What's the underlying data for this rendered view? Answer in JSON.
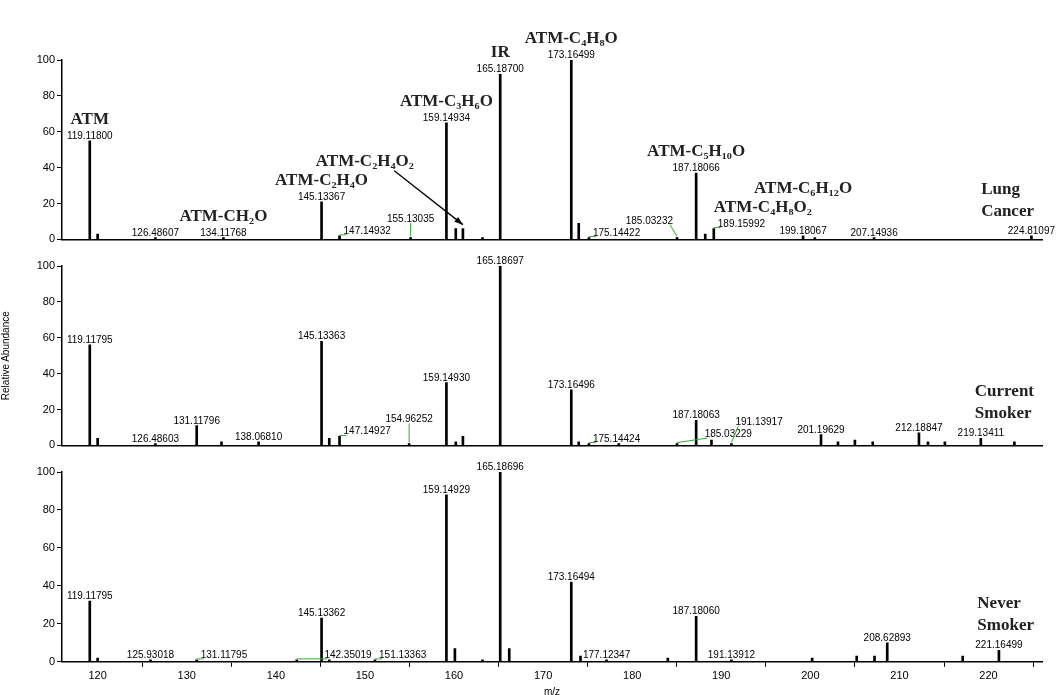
{
  "chart_data": [
    {
      "type": "bar",
      "xlim": [
        116,
        226
      ],
      "ylim": [
        0,
        100
      ],
      "yticks": [
        0,
        20,
        40,
        60,
        80,
        100
      ],
      "tick_labels": "y",
      "color": "#000000",
      "x": [
        119.118,
        120.0,
        126.48607,
        134.11768,
        145.13367,
        147.14932,
        155.13035,
        159.14934,
        160.2,
        161.0,
        163.2,
        165.187,
        173.16499,
        174.0,
        175.14422,
        185.03232,
        187.18066,
        188.2,
        189.15992,
        199.18067,
        200.5,
        207.14936,
        224.81097
      ],
      "values": [
        55,
        3,
        1,
        1,
        21,
        2,
        1,
        65,
        6,
        6,
        1,
        92,
        100,
        9,
        1,
        1,
        37,
        3,
        6,
        2,
        1,
        1,
        2
      ],
      "annotations": [
        {
          "text": "119.11800",
          "x": 119.118,
          "y": 55
        },
        {
          "text": "126.48607",
          "x": 126.48607,
          "y": 1
        },
        {
          "text": "134.11768",
          "x": 134.11768,
          "y": 1
        },
        {
          "text": "145.13367",
          "x": 145.13367,
          "y": 21
        },
        {
          "text": "147.14932",
          "x": 147.14932,
          "y": 2
        },
        {
          "text": "155.13035",
          "x": 155.13035,
          "y": 1
        },
        {
          "text": "159.14934",
          "x": 159.14934,
          "y": 65
        },
        {
          "text": "165.18700",
          "x": 165.187,
          "y": 92
        },
        {
          "text": "173.16499",
          "x": 173.16499,
          "y": 100
        },
        {
          "text": "175.14422",
          "x": 175.14422,
          "y": 1
        },
        {
          "text": "185.03232",
          "x": 185.03232,
          "y": 1
        },
        {
          "text": "187.18066",
          "x": 187.18066,
          "y": 37
        },
        {
          "text": "189.15992",
          "x": 189.15992,
          "y": 6
        },
        {
          "text": "199.18067",
          "x": 199.18067,
          "y": 2
        },
        {
          "text": "207.14936",
          "x": 207.14936,
          "y": 1
        },
        {
          "text": "224.81097",
          "x": 224.81097,
          "y": 2
        },
        {
          "text": "ATM",
          "x": 119.118,
          "y": 55
        },
        {
          "text": "ATM-CH₂O",
          "x": 134.11768,
          "y": 1
        },
        {
          "text": "ATM-C₂H₄O",
          "x": 145.13367,
          "y": 21
        },
        {
          "text": "ATM-C₂H₄O₂",
          "x": 161.0,
          "y": 6
        },
        {
          "text": "ATM-C₃H₆O",
          "x": 159.14934,
          "y": 65
        },
        {
          "text": "IR",
          "x": 165.187,
          "y": 92
        },
        {
          "text": "ATM-C₄H₈O",
          "x": 173.16499,
          "y": 100
        },
        {
          "text": "ATM-C₅H₁₀O",
          "x": 187.18066,
          "y": 37
        },
        {
          "text": "ATM-C₄H₈O₂",
          "x": 189.15992,
          "y": 6
        },
        {
          "text": "ATM-C₆H₁₂O",
          "x": 199.18067,
          "y": 2
        },
        "Lung Cancer"
      ]
    },
    {
      "type": "bar",
      "xlim": [
        116,
        226
      ],
      "ylim": [
        0,
        100
      ],
      "yticks": [
        0,
        20,
        40,
        60,
        80,
        100
      ],
      "tick_labels": "y",
      "color": "#000000",
      "ylabel": "Relative Abundance",
      "x": [
        119.11795,
        120.0,
        126.48603,
        131.11796,
        133.9,
        138.0681,
        145.13363,
        146.0,
        147.14927,
        154.96252,
        159.1493,
        160.2,
        161.0,
        165.18697,
        173.16496,
        174.0,
        175.14424,
        178.5,
        185.03229,
        187.18063,
        188.9,
        191.13917,
        201.19629,
        203.1,
        205.0,
        207.0,
        212.18847,
        213.2,
        215.1,
        219.13411,
        222.9
      ],
      "values": [
        56,
        4,
        1,
        11,
        2,
        2,
        58,
        4,
        5,
        1,
        35,
        2,
        5,
        100,
        31,
        2,
        1,
        1,
        1,
        14,
        3,
        1,
        6,
        2,
        3,
        2,
        7,
        2,
        2,
        4,
        2
      ],
      "annotations": [
        {
          "text": "119.11795",
          "x": 119.11795,
          "y": 56
        },
        {
          "text": "126.48603",
          "x": 126.48603,
          "y": 1
        },
        {
          "text": "131.11796",
          "x": 131.11796,
          "y": 11
        },
        {
          "text": "138.06810",
          "x": 138.0681,
          "y": 2
        },
        {
          "text": "145.13363",
          "x": 145.13363,
          "y": 58
        },
        {
          "text": "147.14927",
          "x": 147.14927,
          "y": 5
        },
        {
          "text": "154.96252",
          "x": 154.96252,
          "y": 1
        },
        {
          "text": "159.14930",
          "x": 159.1493,
          "y": 35
        },
        {
          "text": "165.18697",
          "x": 165.18697,
          "y": 100
        },
        {
          "text": "173.16496",
          "x": 173.16496,
          "y": 31
        },
        {
          "text": "175.14424",
          "x": 175.14424,
          "y": 1
        },
        {
          "text": "185.03229",
          "x": 185.03229,
          "y": 1
        },
        {
          "text": "187.18063",
          "x": 187.18063,
          "y": 14
        },
        {
          "text": "191.13917",
          "x": 191.13917,
          "y": 1
        },
        {
          "text": "201.19629",
          "x": 201.19629,
          "y": 6
        },
        {
          "text": "212.18847",
          "x": 212.18847,
          "y": 7
        },
        {
          "text": "219.13411",
          "x": 219.13411,
          "y": 4
        },
        "Current Smoker"
      ]
    },
    {
      "type": "bar",
      "xlim": [
        116,
        226
      ],
      "ylim": [
        0,
        100
      ],
      "yticks": [
        0,
        20,
        40,
        60,
        80,
        100
      ],
      "xticks": [
        120,
        130,
        140,
        150,
        160,
        170,
        180,
        190,
        200,
        210,
        220
      ],
      "color": "#000000",
      "xlabel": "m/z",
      "x": [
        119.11795,
        120.0,
        125.93018,
        131.11795,
        142.35019,
        145.13362,
        146.0,
        151.13363,
        159.14929,
        160.1,
        163.2,
        165.18696,
        166.2,
        173.16494,
        174.2,
        177.12347,
        184.0,
        187.1806,
        191.13912,
        200.2,
        205.2,
        207.2,
        208.62893,
        217.1,
        221.16499
      ],
      "values": [
        32,
        2,
        1,
        1,
        1,
        23,
        1,
        1,
        88,
        7,
        1,
        100,
        7,
        42,
        3,
        1,
        2,
        24,
        1,
        2,
        3,
        3,
        10,
        3,
        6
      ],
      "annotations": [
        {
          "text": "119.11795",
          "x": 119.11795,
          "y": 32
        },
        {
          "text": "125.93018",
          "x": 125.93018,
          "y": 1
        },
        {
          "text": "131.11795",
          "x": 131.11795,
          "y": 1
        },
        {
          "text": "142.35019",
          "x": 142.35019,
          "y": 1
        },
        {
          "text": "145.13362",
          "x": 145.13362,
          "y": 23
        },
        {
          "text": "151.13363",
          "x": 151.13363,
          "y": 1
        },
        {
          "text": "159.14929",
          "x": 159.14929,
          "y": 88
        },
        {
          "text": "165.18696",
          "x": 165.18696,
          "y": 100
        },
        {
          "text": "173.16494",
          "x": 173.16494,
          "y": 42
        },
        {
          "text": "177.12347",
          "x": 177.12347,
          "y": 1
        },
        {
          "text": "187.18060",
          "x": 187.1806,
          "y": 24
        },
        {
          "text": "191.13912",
          "x": 191.13912,
          "y": 1
        },
        {
          "text": "208.62893",
          "x": 208.62893,
          "y": 10
        },
        {
          "text": "221.16499",
          "x": 221.16499,
          "y": 6
        },
        "Never Smoker"
      ]
    }
  ]
}
